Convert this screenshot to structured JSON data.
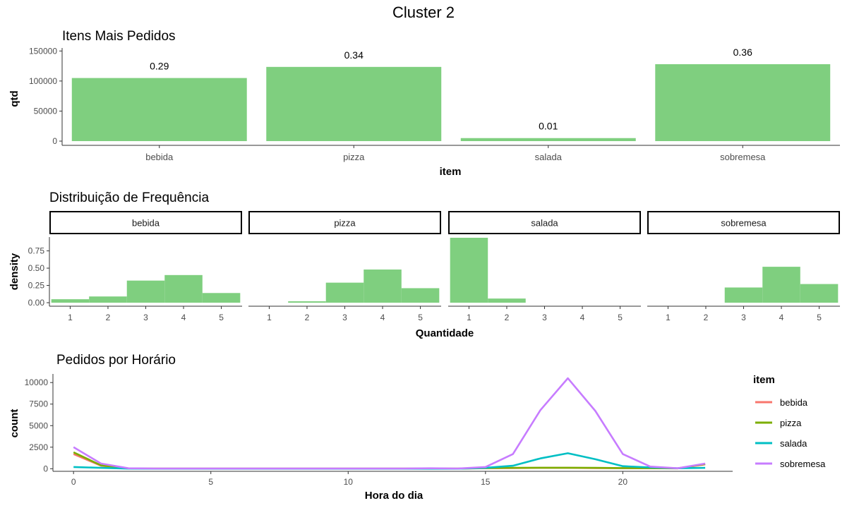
{
  "page": {
    "title": "Cluster 2"
  },
  "chart_data": [
    {
      "type": "bar",
      "title": "Itens Mais Pedidos",
      "xlabel": "item",
      "ylabel": "qtd",
      "categories": [
        "bebida",
        "pizza",
        "salada",
        "sobremesa"
      ],
      "values": [
        105000,
        123500,
        5000,
        128000
      ],
      "data_labels": [
        "0.29",
        "0.34",
        "0.01",
        "0.36"
      ],
      "ylim": [
        0,
        155000
      ],
      "yticks": [
        0,
        50000,
        100000,
        150000
      ],
      "ytick_labels": [
        "0",
        "50000",
        "100000",
        "150000"
      ],
      "bar_color": "#7FCF7F",
      "grid": false
    },
    {
      "type": "bar",
      "title": "Distribuição de Frequência",
      "xlabel": "Quantidade",
      "ylabel": "density",
      "facets": [
        "bebida",
        "pizza",
        "salada",
        "sobremesa"
      ],
      "x": [
        1,
        2,
        3,
        4,
        5
      ],
      "series": [
        {
          "facet": "bebida",
          "values": [
            0.05,
            0.09,
            0.32,
            0.4,
            0.14
          ]
        },
        {
          "facet": "pizza",
          "values": [
            0.0,
            0.02,
            0.29,
            0.48,
            0.21
          ]
        },
        {
          "facet": "salada",
          "values": [
            0.94,
            0.06,
            0.0,
            0.0,
            0.0
          ]
        },
        {
          "facet": "sobremesa",
          "values": [
            0.0,
            0.0,
            0.22,
            0.52,
            0.27
          ]
        }
      ],
      "ylim": [
        0,
        0.95
      ],
      "yticks": [
        0,
        0.25,
        0.5,
        0.75
      ],
      "ytick_labels": [
        "0.00",
        "0.25",
        "0.50",
        "0.75"
      ],
      "xticks": [
        1,
        2,
        3,
        4,
        5
      ],
      "bar_color": "#7FCF7F",
      "grid": false
    },
    {
      "type": "line",
      "title": "Pedidos por Horário",
      "xlabel": "Hora do dia",
      "ylabel": "count",
      "legend_title": "item",
      "legend_position": "right",
      "x": [
        0,
        1,
        2,
        3,
        4,
        5,
        6,
        7,
        8,
        9,
        10,
        11,
        12,
        13,
        14,
        15,
        16,
        17,
        18,
        19,
        20,
        21,
        22,
        23
      ],
      "series": [
        {
          "name": "bebida",
          "color": "#F8766D",
          "values": [
            1700,
            350,
            20,
            10,
            10,
            10,
            10,
            10,
            10,
            10,
            10,
            10,
            10,
            10,
            10,
            60,
            80,
            100,
            100,
            80,
            60,
            60,
            40,
            500
          ]
        },
        {
          "name": "pizza",
          "color": "#7CAE00",
          "values": [
            1900,
            400,
            20,
            10,
            10,
            10,
            10,
            10,
            10,
            10,
            10,
            10,
            10,
            10,
            10,
            80,
            100,
            120,
            120,
            100,
            80,
            60,
            40,
            550
          ]
        },
        {
          "name": "salada",
          "color": "#00BFC4",
          "values": [
            200,
            100,
            10,
            5,
            5,
            5,
            5,
            5,
            5,
            5,
            5,
            5,
            5,
            5,
            5,
            100,
            350,
            1200,
            1800,
            1100,
            300,
            150,
            50,
            100
          ]
        },
        {
          "name": "sobremesa",
          "color": "#C77CFF",
          "values": [
            2500,
            600,
            50,
            20,
            20,
            20,
            20,
            20,
            20,
            20,
            20,
            20,
            20,
            50,
            20,
            200,
            1700,
            6800,
            10500,
            6700,
            1700,
            250,
            50,
            600
          ]
        }
      ],
      "xlim": [
        -0.75,
        24
      ],
      "ylim": [
        -300,
        11000
      ],
      "xticks": [
        0,
        5,
        10,
        15,
        20
      ],
      "yticks": [
        0,
        2500,
        5000,
        7500,
        10000
      ],
      "ytick_labels": [
        "0",
        "2500",
        "5000",
        "7500",
        "10000"
      ],
      "grid": false
    }
  ]
}
